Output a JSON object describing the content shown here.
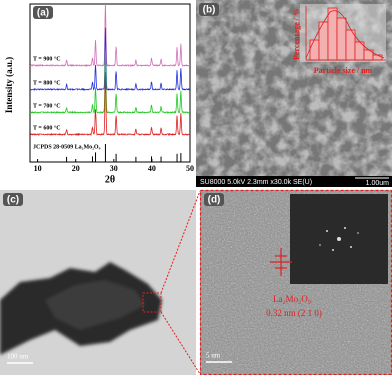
{
  "panels": {
    "a": {
      "label": "(a)",
      "y_label": "Intensity (a.u.)",
      "x_label": "2θ",
      "xlim": [
        8,
        50
      ],
      "xticks": [
        10,
        20,
        30,
        40,
        50
      ],
      "traces": [
        {
          "label": "T = 900 °C",
          "color": "#d070b8"
        },
        {
          "label": "T = 800 °C",
          "color": "#2030d8"
        },
        {
          "label": "T = 700 °C",
          "color": "#20c820"
        },
        {
          "label": "T = 600 °C",
          "color": "#e02020"
        }
      ],
      "reference": {
        "label": "JCPDS 28-0509 La₂Mo₂O₉",
        "peaks": [
          {
            "x": 17.6,
            "h": 0.08
          },
          {
            "x": 24.4,
            "h": 0.12
          },
          {
            "x": 25.2,
            "h": 0.4
          },
          {
            "x": 27.8,
            "h": 1
          },
          {
            "x": 30.6,
            "h": 0.3
          },
          {
            "x": 35.8,
            "h": 0.08
          },
          {
            "x": 39.9,
            "h": 0.12
          },
          {
            "x": 42.4,
            "h": 0.1
          },
          {
            "x": 46.6,
            "h": 0.3
          },
          {
            "x": 47.6,
            "h": 0.35
          }
        ]
      }
    },
    "b": {
      "label": "(b)",
      "inset_y_label": "Percentage / %",
      "inset_x_label": "Particle size / nm",
      "info": "SU8000 5.0kV 2.3mm x30.0k SE(U)",
      "scale": "1.00um"
    },
    "c": {
      "label": "(c)",
      "scale": "100 nm"
    },
    "d": {
      "label": "(d)",
      "phase": "La₂Mo₂O₉",
      "spacing": "0.32 nm (2 1 0)",
      "scale": "5 nm"
    }
  }
}
